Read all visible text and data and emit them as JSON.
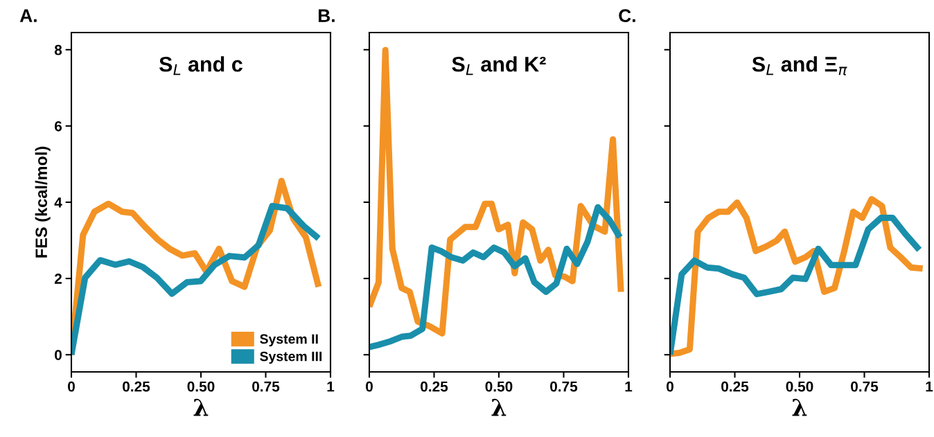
{
  "chart_data": [
    {
      "type": "line",
      "title": "S$_{L}$ and c",
      "xlabel": "λ",
      "ylabel": "FES (kcal/mol)",
      "annotations": [
        "A."
      ],
      "xlim": [
        0,
        1
      ],
      "ylim": [
        -0.45,
        8.45
      ],
      "xticks": [
        0,
        {
          "value": 0.25,
          "label": "0.25"
        },
        {
          "value": 0.5,
          "label": "0.50"
        },
        {
          "value": 0.75,
          "label": "0.75"
        },
        1
      ],
      "yticks": [
        0,
        2,
        4,
        6,
        8
      ],
      "grid": false,
      "legend": "bottom right",
      "line_style": "solid",
      "marker": "none",
      "series": [
        {
          "name": "System II",
          "color": "#f39325",
          "x": [
            0,
            0.045,
            0.089,
            0.143,
            0.196,
            0.236,
            0.285,
            0.334,
            0.379,
            0.428,
            0.477,
            0.521,
            0.57,
            0.62,
            0.668,
            0.717,
            0.766,
            0.811,
            0.856,
            0.905,
            0.954
          ],
          "values": [
            0,
            3.14,
            3.75,
            3.96,
            3.75,
            3.72,
            3.35,
            3.02,
            2.78,
            2.6,
            2.66,
            2.18,
            2.78,
            1.93,
            1.78,
            2.84,
            3.26,
            4.56,
            3.57,
            3.08,
            1.78
          ]
        },
        {
          "name": "System III",
          "color": "#1a8fab",
          "x": [
            0,
            0.053,
            0.111,
            0.169,
            0.223,
            0.276,
            0.33,
            0.388,
            0.446,
            0.499,
            0.553,
            0.61,
            0.668,
            0.722,
            0.775,
            0.833,
            0.896,
            0.954
          ],
          "values": [
            0,
            2.02,
            2.48,
            2.36,
            2.45,
            2.3,
            2.02,
            1.6,
            1.9,
            1.93,
            2.36,
            2.59,
            2.55,
            2.87,
            3.9,
            3.84,
            3.38,
            3.05
          ]
        }
      ]
    },
    {
      "type": "line",
      "title": "S$_{L}$ and K²",
      "xlabel": "λ",
      "annotations": [
        "B."
      ],
      "xlim": [
        0,
        1
      ],
      "ylim": [
        -0.45,
        8.45
      ],
      "xticks": [
        0,
        {
          "value": 0.25,
          "label": "0.25"
        },
        {
          "value": 0.5,
          "label": "0.50"
        },
        {
          "value": 0.75,
          "label": "0.75"
        },
        1
      ],
      "yticks": [
        {
          "value": 0,
          "label": null
        },
        {
          "value": 2,
          "label": null
        },
        {
          "value": 4,
          "label": null
        },
        {
          "value": 6,
          "label": null
        },
        {
          "value": 8,
          "label": null
        }
      ],
      "tick_labels": "x",
      "grid": false,
      "line_style": "solid",
      "marker": "none",
      "series": [
        {
          "color": "#f39325",
          "x": [
            0,
            0.036,
            0.062,
            0.089,
            0.125,
            0.156,
            0.187,
            0.232,
            0.281,
            0.312,
            0.37,
            0.41,
            0.446,
            0.472,
            0.499,
            0.535,
            0.561,
            0.593,
            0.628,
            0.66,
            0.691,
            0.718,
            0.753,
            0.784,
            0.816,
            0.865,
            0.909,
            0.94,
            0.971
          ],
          "values": [
            1.26,
            1.9,
            7.99,
            2.78,
            1.75,
            1.65,
            0.87,
            0.75,
            0.56,
            3.02,
            3.35,
            3.35,
            3.96,
            3.96,
            3.29,
            3.41,
            2.14,
            3.47,
            3.29,
            2.47,
            2.75,
            2.08,
            2.05,
            1.93,
            3.9,
            3.38,
            3.23,
            5.65,
            1.65
          ]
        },
        {
          "color": "#1a8fab",
          "x": [
            0,
            0.036,
            0.08,
            0.125,
            0.16,
            0.205,
            0.241,
            0.276,
            0.316,
            0.361,
            0.401,
            0.441,
            0.481,
            0.521,
            0.561,
            0.602,
            0.637,
            0.682,
            0.722,
            0.762,
            0.802,
            0.842,
            0.882,
            0.927,
            0.967
          ],
          "values": [
            0.2,
            0.26,
            0.35,
            0.47,
            0.5,
            0.68,
            2.81,
            2.72,
            2.56,
            2.47,
            2.68,
            2.56,
            2.81,
            2.68,
            2.32,
            2.53,
            1.9,
            1.65,
            1.87,
            2.78,
            2.38,
            2.96,
            3.87,
            3.53,
            3.08
          ]
        }
      ]
    },
    {
      "type": "line",
      "title": "S$_{L}$ and Ξ$_{π}$",
      "xlabel": "λ",
      "annotations": [
        "C."
      ],
      "xlim": [
        0,
        1
      ],
      "ylim": [
        -0.45,
        8.45
      ],
      "xticks": [
        0,
        {
          "value": 0.25,
          "label": "0.25"
        },
        {
          "value": 0.5,
          "label": "0.50"
        },
        {
          "value": 0.75,
          "label": "0.75"
        },
        1
      ],
      "yticks": [
        {
          "value": 0,
          "label": null
        },
        {
          "value": 2,
          "label": null
        },
        {
          "value": 4,
          "label": null
        },
        {
          "value": 6,
          "label": null
        },
        {
          "value": 8,
          "label": null
        }
      ],
      "tick_labels": "x",
      "grid": false,
      "line_style": "solid",
      "marker": "none",
      "series": [
        {
          "color": "#f39325",
          "x": [
            0,
            0.036,
            0.076,
            0.107,
            0.148,
            0.188,
            0.224,
            0.259,
            0.295,
            0.331,
            0.371,
            0.411,
            0.443,
            0.483,
            0.523,
            0.555,
            0.595,
            0.635,
            0.671,
            0.707,
            0.742,
            0.778,
            0.818,
            0.85,
            0.89,
            0.93,
            0.975
          ],
          "values": [
            0.02,
            0.05,
            0.14,
            3.23,
            3.59,
            3.75,
            3.75,
            3.99,
            3.59,
            2.72,
            2.84,
            2.99,
            3.23,
            2.44,
            2.56,
            2.72,
            1.65,
            1.75,
            2.68,
            3.75,
            3.59,
            4.08,
            3.9,
            2.81,
            2.56,
            2.29,
            2.26
          ]
        },
        {
          "color": "#1a8fab",
          "x": [
            0,
            0.045,
            0.094,
            0.143,
            0.188,
            0.242,
            0.286,
            0.335,
            0.38,
            0.429,
            0.474,
            0.523,
            0.572,
            0.622,
            0.671,
            0.716,
            0.765,
            0.814,
            0.859,
            0.908,
            0.962
          ],
          "values": [
            0,
            2.11,
            2.47,
            2.29,
            2.26,
            2.11,
            2.02,
            1.59,
            1.65,
            1.72,
            2.02,
            1.99,
            2.78,
            2.35,
            2.35,
            2.35,
            3.29,
            3.59,
            3.59,
            3.17,
            2.75
          ]
        }
      ]
    }
  ]
}
